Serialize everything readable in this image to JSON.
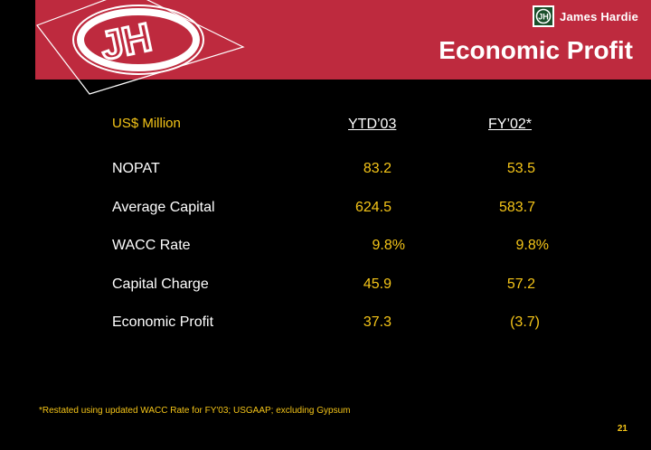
{
  "brand": {
    "name": "James Hardie",
    "logo_monogram": "JH"
  },
  "title": "Economic Profit",
  "table": {
    "unit_label": "US$ Million",
    "columns": [
      "YTD’03",
      "FY’02*"
    ],
    "rows": [
      {
        "label": "NOPAT",
        "ytd03": "83.2",
        "fy02": "53.5"
      },
      {
        "label": "Average Capital",
        "ytd03": "624.5",
        "fy02": "583.7"
      },
      {
        "label": "WACC Rate",
        "ytd03": "9.8%",
        "fy02": "9.8%"
      },
      {
        "label": "Capital Charge",
        "ytd03": "45.9",
        "fy02": "57.2"
      },
      {
        "label": "Economic Profit",
        "ytd03": "37.3",
        "fy02": "(3.7)"
      }
    ]
  },
  "footnote": "*Restated using updated WACC Rate for FY'03; USGAAP; excluding Gypsum",
  "page_number": "21",
  "colors": {
    "banner": "#BE2A3E",
    "accent": "#F5C518",
    "background": "#000000"
  }
}
